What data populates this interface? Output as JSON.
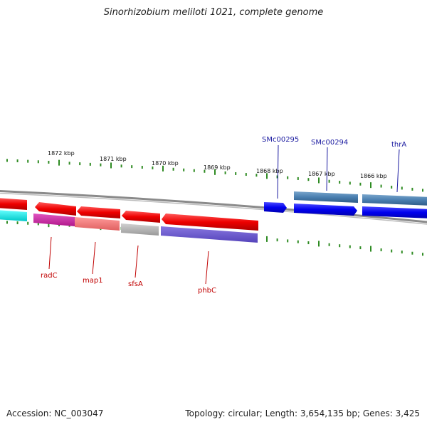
{
  "title": "Sinorhizobium meliloti 1021, complete genome",
  "footer": {
    "accession": "Accession: NC_003047",
    "summary": "Topology: circular; Length: 3,654,135 bp; Genes: 3,425"
  },
  "colors": {
    "backbone": "#8a8a8a",
    "tick": "#2e8b22",
    "forward_label": "#1a1aa0",
    "reverse_label": "#c00000"
  },
  "ruler_labels": [
    "1872 kbp",
    "1871 kbp",
    "1870 kbp",
    "1869 kbp",
    "1868 kbp",
    "1867 kbp",
    "1866 kbp"
  ],
  "genes": {
    "forward": [
      {
        "name": "SMc00295",
        "feature_color": "#0000ee"
      },
      {
        "name": "SMc00294",
        "feature_color": "#0000ee",
        "annotation_color": "#4a7fb0"
      },
      {
        "name": "thrA",
        "feature_color": "#0000ee",
        "annotation_color": "#4a7fb0"
      }
    ],
    "reverse": [
      {
        "name": "radC",
        "feature_color": "#ee0000",
        "annotation_color": "#cc2299"
      },
      {
        "name": "map1",
        "feature_color": "#ee0000",
        "annotation_color": "#ee7777"
      },
      {
        "name": "sfsA",
        "feature_color": "#ee0000",
        "annotation_color": "#aaaaaa"
      },
      {
        "name": "phbC",
        "feature_color": "#ee0000",
        "annotation_color": "#6655cc"
      }
    ],
    "offscreen_left_annotation_color": "#00e0e0"
  }
}
